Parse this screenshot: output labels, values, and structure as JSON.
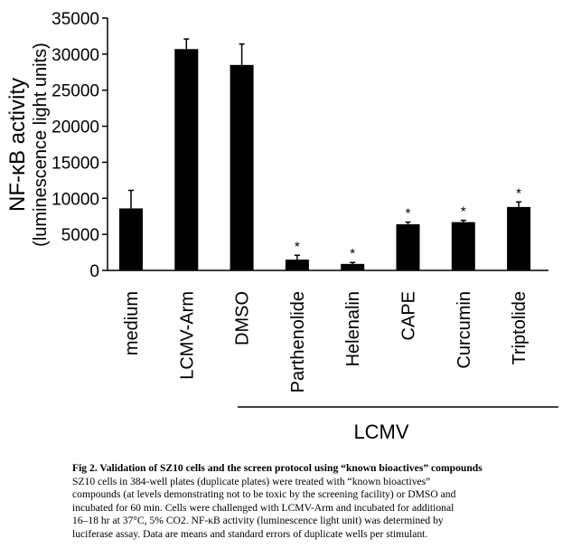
{
  "chart_data": {
    "type": "bar",
    "ylabel": "NF-κB activity",
    "ylabel_sub": "(luminescence light units)",
    "ylim": [
      0,
      35000
    ],
    "yticks": [
      0,
      5000,
      10000,
      15000,
      20000,
      25000,
      30000,
      35000
    ],
    "categories": [
      "medium",
      "LCMV-Arm",
      "DMSO",
      "Parthenolide",
      "Helenalin",
      "CAPE",
      "Curcumin",
      "Triptolide"
    ],
    "values": [
      8600,
      30700,
      28500,
      1500,
      900,
      6400,
      6700,
      8800
    ],
    "errors": [
      2500,
      1400,
      2900,
      600,
      200,
      300,
      250,
      700
    ],
    "annotations": [
      "",
      "",
      "",
      "*",
      "*",
      "*",
      "*",
      "*"
    ],
    "group_label": "LCMV",
    "bar_color": "#000000"
  },
  "caption": {
    "title": "Fig 2. Validation of SZ10 cells and the screen protocol using “known bioactives” compounds",
    "lines": [
      "SZ10 cells in 384-well plates (duplicate plates) were treated with “known bioactives”",
      "compounds (at levels demonstrating not to be toxic by the screening facility) or DMSO and",
      "incubated for 60 min. Cells were challenged with LCMV-Arm and incubated for additional",
      "16–18 hr at 37°C, 5% CO2. NF-κB activity (luminescence light unit) was determined by",
      "luciferase assay. Data are means and standard errors of duplicate wells per stimulant."
    ]
  }
}
